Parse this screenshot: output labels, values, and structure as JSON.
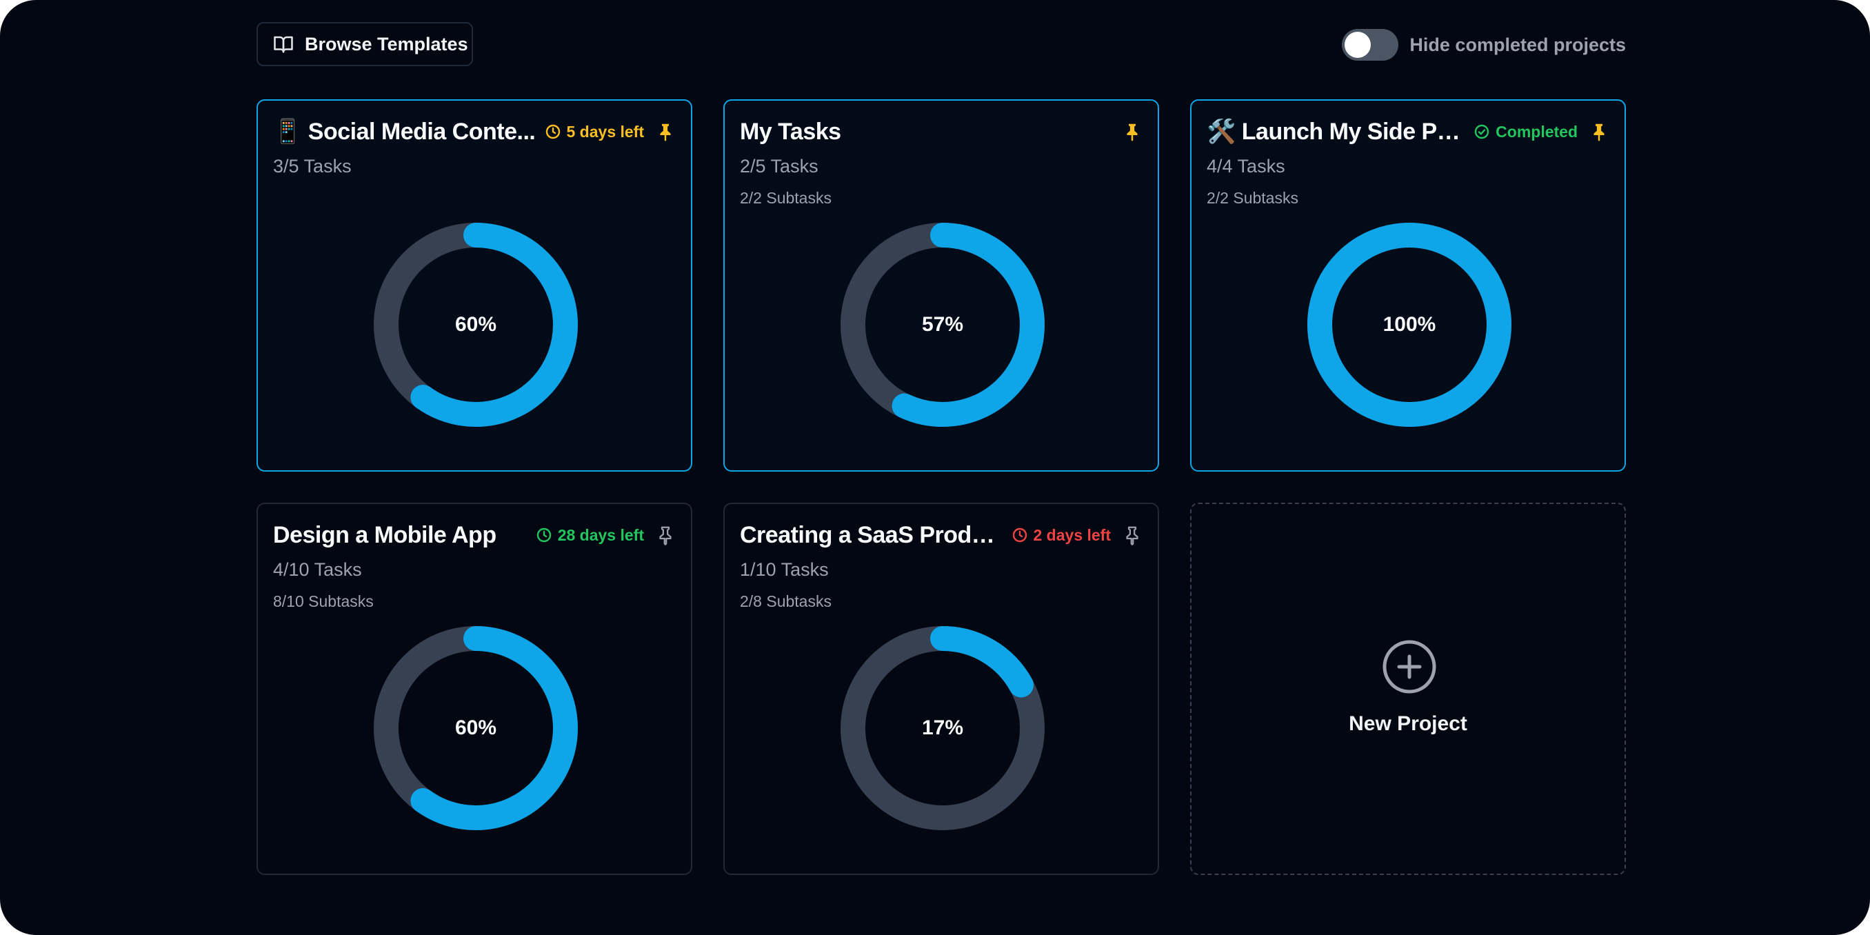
{
  "toolbar": {
    "browse_label": "Browse Templates",
    "hide_completed_label": "Hide completed projects",
    "hide_completed_on": false
  },
  "colors": {
    "background": "#030712",
    "accent": "#0ea5e9",
    "ring_track": "#374151",
    "warning": "#fbbf24",
    "success": "#22c55e",
    "danger": "#ef4444",
    "muted": "#9ca3af"
  },
  "projects": [
    {
      "title": "📱 Social Media Conte...",
      "tasks": "3/5 Tasks",
      "subtasks": "",
      "due": "5 days left",
      "due_status": "warning",
      "due_icon": "clock-icon",
      "pinned": true,
      "progress_label": "60%",
      "progress": 60
    },
    {
      "title": "My Tasks",
      "tasks": "2/5 Tasks",
      "subtasks": "2/2 Subtasks",
      "due": "",
      "due_status": "",
      "due_icon": "",
      "pinned": true,
      "progress_label": "57%",
      "progress": 57
    },
    {
      "title": "🛠️ Launch My Side Pro...",
      "tasks": "4/4 Tasks",
      "subtasks": "2/2 Subtasks",
      "due": "Completed",
      "due_status": "success",
      "due_icon": "check-circle-icon",
      "pinned": true,
      "progress_label": "100%",
      "progress": 100
    },
    {
      "title": "Design a Mobile App",
      "tasks": "4/10 Tasks",
      "subtasks": "8/10 Subtasks",
      "due": "28 days left",
      "due_status": "success",
      "due_icon": "clock-icon",
      "pinned": false,
      "progress_label": "60%",
      "progress": 60
    },
    {
      "title": "Creating a SaaS Product",
      "tasks": "1/10 Tasks",
      "subtasks": "2/8 Subtasks",
      "due": "2 days left",
      "due_status": "danger",
      "due_icon": "clock-icon",
      "pinned": false,
      "progress_label": "17%",
      "progress": 17
    }
  ],
  "new_project": {
    "label": "New Project",
    "icon": "plus-circle-icon"
  }
}
